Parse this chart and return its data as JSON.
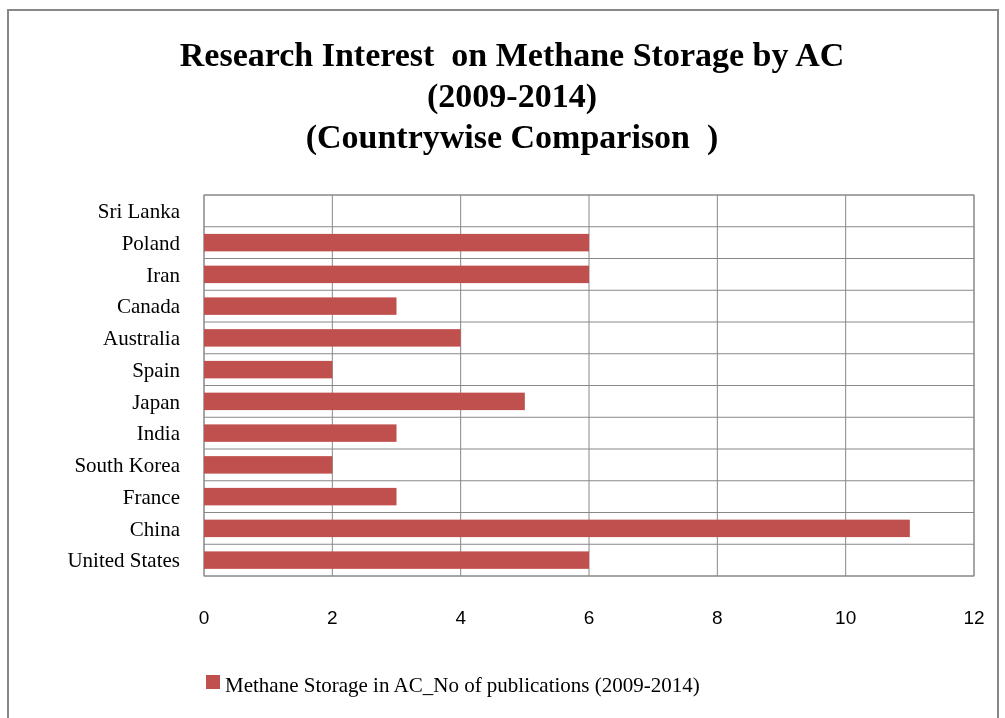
{
  "chart_data": {
    "type": "bar",
    "orientation": "horizontal",
    "title": "Research Interest  on Methane Storage by AC\n(2009-2014)\n(Countrywise Comparison  )",
    "categories": [
      "Sri Lanka",
      "Poland",
      "Iran",
      "Canada",
      "Australia",
      "Spain",
      "Japan",
      "India",
      "South Korea",
      "France",
      "China",
      "United States"
    ],
    "series": [
      {
        "name": "Methane Storage in AC_No of publications (2009-2014)",
        "color": "#c0504d",
        "values": [
          0,
          6,
          6,
          3,
          4,
          2,
          5,
          3,
          2,
          3,
          11,
          6
        ]
      }
    ],
    "xlim": [
      0,
      12
    ],
    "xticks": [
      0,
      2,
      4,
      6,
      8,
      10,
      12
    ],
    "grid": true,
    "legend": "bottom"
  }
}
